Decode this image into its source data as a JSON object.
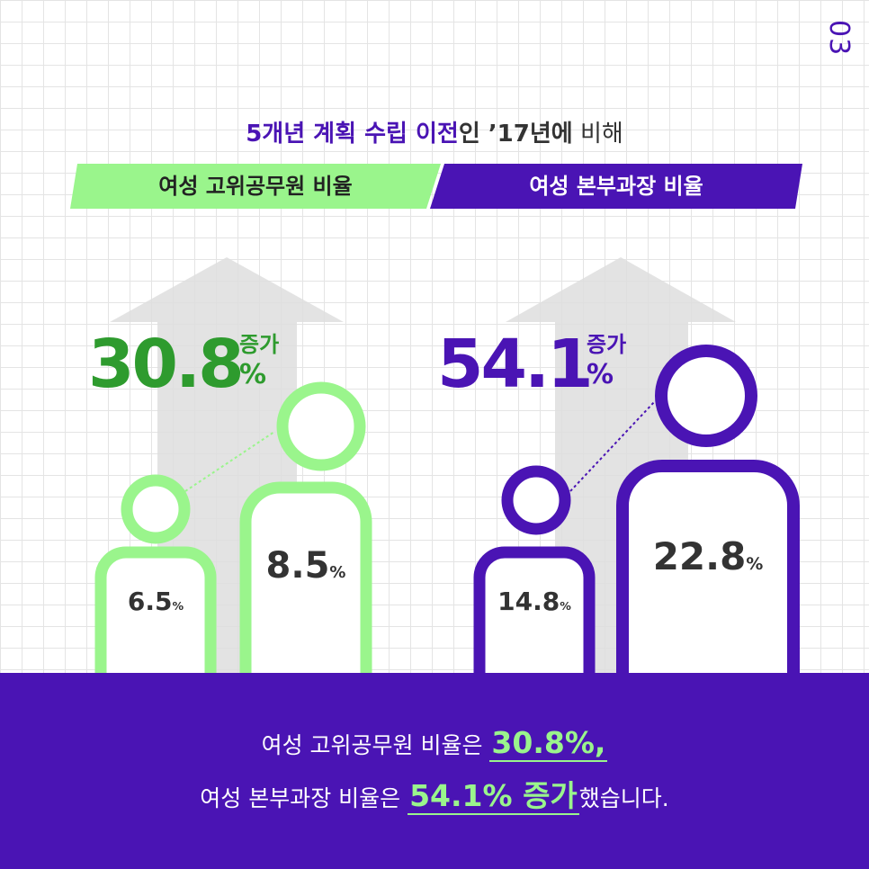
{
  "page_number": "03",
  "headline": {
    "part_accent": "5개년 계획 수립 이전",
    "part_bold": "인 ’17년에",
    "part_plain": " 비해"
  },
  "bands": {
    "left_label": "여성 고위공무원 비율",
    "right_label": "여성 본부과장 비율"
  },
  "left_group": {
    "increase_value": "30.8",
    "increase_word": "증가",
    "percent": "%",
    "before_value": "6.5",
    "after_value": "8.5",
    "unit": "%",
    "color": "#2e9b2e",
    "outline_color": "#9af58c"
  },
  "right_group": {
    "increase_value": "54.1",
    "increase_word": "증가",
    "percent": "%",
    "before_value": "14.8",
    "after_value": "22.8",
    "unit": "%",
    "color": "#4a14b4",
    "outline_color": "#4a14b4"
  },
  "footer": {
    "line1_text": "여성 고위공무원 비율은 ",
    "line1_highlight": "30.8%,",
    "line2_text": "여성 본부과장 비율은 ",
    "line2_highlight": "54.1% 증가",
    "line2_suffix": "했습니다."
  }
}
